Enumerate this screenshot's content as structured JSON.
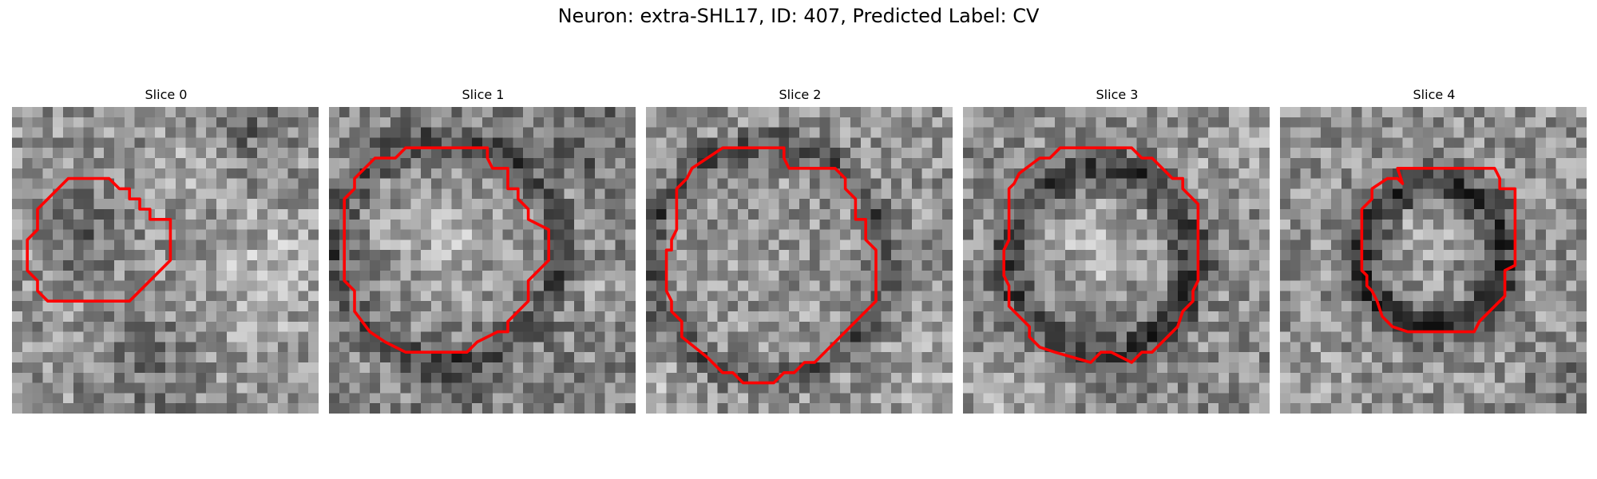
{
  "figure": {
    "title": "Neuron: extra-SHL17, ID: 407, Predicted Label: CV"
  },
  "panels": [
    {
      "title": "Slice 0",
      "pattern": "small-octagon-left"
    },
    {
      "title": "Slice 1",
      "pattern": "large-bright-cell"
    },
    {
      "title": "Slice 2",
      "pattern": "large-cell-dark-rim"
    },
    {
      "title": "Slice 3",
      "pattern": "cell-dark-rim"
    },
    {
      "title": "Slice 4",
      "pattern": "cell-thick-dark-rim"
    }
  ],
  "colors": {
    "contour": "#ff0000",
    "image_colormap": "grayscale"
  }
}
